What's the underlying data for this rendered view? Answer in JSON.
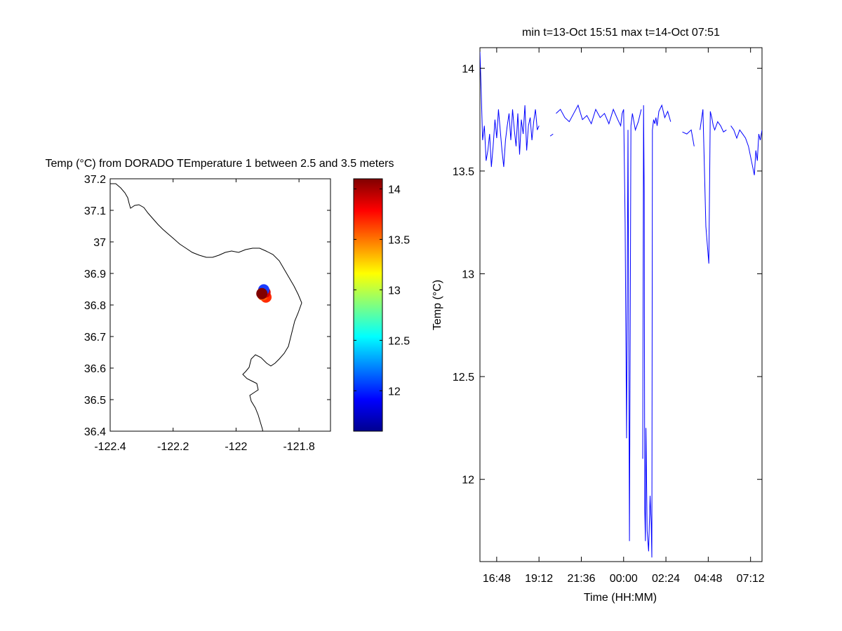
{
  "map_panel": {
    "title": "Temp (°C) from DORADO TEmperature 1 between 2.5 and 3.5 meters",
    "xlim": [
      -122.4,
      -121.7
    ],
    "ylim": [
      36.4,
      37.2
    ],
    "xticks": [
      "-122.4",
      "-122.2",
      "-122",
      "-121.8"
    ],
    "yticks": [
      "37.2",
      "37.1",
      "37",
      "36.9",
      "36.8",
      "36.7",
      "36.6",
      "36.5",
      "36.4"
    ],
    "track_markers": [
      {
        "lon": -121.905,
        "lat": 36.825,
        "color": "#ff2a00"
      },
      {
        "lon": -121.915,
        "lat": 36.832,
        "color": "#ff5a00"
      },
      {
        "lon": -121.908,
        "lat": 36.84,
        "color": "#d80000"
      },
      {
        "lon": -121.912,
        "lat": 36.848,
        "color": "#1a3cff"
      },
      {
        "lon": -121.918,
        "lat": 36.836,
        "color": "#800000"
      }
    ],
    "coastline_color": "#000000"
  },
  "colorbar": {
    "range": [
      11.6,
      14.1
    ],
    "ticks": [
      "14",
      "13.5",
      "13",
      "12.5",
      "12"
    ],
    "colormap": "jet"
  },
  "chart_data": {
    "type": "line",
    "title": "min t=13-Oct 15:51 max t=14-Oct 07:51",
    "xlabel": "Time (HH:MM)",
    "ylabel": "Temp (°C)",
    "xlim": [
      "13-Oct 15:51",
      "14-Oct 07:51"
    ],
    "ylim": [
      11.6,
      14.1
    ],
    "xticks": [
      "16:48",
      "19:12",
      "21:36",
      "00:00",
      "02:24",
      "04:48",
      "07:12"
    ],
    "yticks": [
      "14",
      "13.5",
      "13",
      "12.5",
      "12"
    ],
    "grid": false,
    "series": [
      {
        "color": "#0000ff",
        "x": [
          "13-Oct 15:51",
          "13-Oct 15:55",
          "13-Oct 16:00",
          "13-Oct 16:06",
          "13-Oct 16:12",
          "13-Oct 16:18",
          "13-Oct 16:24",
          "13-Oct 16:30",
          "13-Oct 16:36",
          "13-Oct 16:42",
          "13-Oct 16:48",
          "13-Oct 16:54",
          "13-Oct 17:00",
          "13-Oct 17:06",
          "13-Oct 17:12",
          "13-Oct 17:18",
          "13-Oct 17:24",
          "13-Oct 17:30",
          "13-Oct 17:36",
          "13-Oct 17:42",
          "13-Oct 17:48",
          "13-Oct 17:54",
          "13-Oct 18:00",
          "13-Oct 18:06",
          "13-Oct 18:12",
          "13-Oct 18:18",
          "13-Oct 18:24",
          "13-Oct 18:30",
          "13-Oct 18:36",
          "13-Oct 18:42",
          "13-Oct 18:48",
          "13-Oct 18:54",
          "13-Oct 19:00",
          "13-Oct 19:06",
          "13-Oct 19:12",
          null,
          "13-Oct 19:50",
          "13-Oct 20:00",
          null,
          "13-Oct 20:10",
          "13-Oct 20:25",
          "13-Oct 20:40",
          "13-Oct 20:55",
          "13-Oct 21:10",
          "13-Oct 21:25",
          "13-Oct 21:40",
          "13-Oct 21:55",
          "13-Oct 22:10",
          "13-Oct 22:25",
          "13-Oct 22:40",
          "13-Oct 22:55",
          "13-Oct 23:10",
          "13-Oct 23:25",
          "13-Oct 23:40",
          "13-Oct 23:50",
          "13-Oct 23:55",
          "14-Oct 00:00",
          "14-Oct 00:05",
          "14-Oct 00:10",
          "14-Oct 00:15",
          "14-Oct 00:20",
          "14-Oct 00:25",
          "14-Oct 00:30",
          "14-Oct 00:40",
          "14-Oct 00:50",
          "14-Oct 01:00",
          null,
          "14-Oct 01:05",
          "14-Oct 01:08",
          "14-Oct 01:10",
          "14-Oct 01:12",
          "14-Oct 01:14",
          "14-Oct 01:16",
          "14-Oct 01:20",
          "14-Oct 01:25",
          "14-Oct 01:30",
          "14-Oct 01:34",
          "14-Oct 01:36",
          "14-Oct 01:38",
          "14-Oct 01:42",
          "14-Oct 01:46",
          "14-Oct 01:50",
          "14-Oct 01:54",
          "14-Oct 02:00",
          "14-Oct 02:10",
          "14-Oct 02:20",
          "14-Oct 02:30",
          "14-Oct 02:40",
          null,
          "14-Oct 03:20",
          "14-Oct 03:35",
          "14-Oct 03:50",
          "14-Oct 04:00",
          null,
          "14-Oct 04:20",
          "14-Oct 04:30",
          "14-Oct 04:40",
          "14-Oct 04:50",
          "14-Oct 04:55",
          "14-Oct 05:00",
          "14-Oct 05:05",
          "14-Oct 05:10",
          "14-Oct 05:20",
          "14-Oct 05:30",
          "14-Oct 05:40",
          "14-Oct 05:50",
          null,
          "14-Oct 06:05",
          "14-Oct 06:15",
          "14-Oct 06:25",
          "14-Oct 06:35",
          "14-Oct 06:45",
          "14-Oct 06:55",
          "14-Oct 07:05",
          "14-Oct 07:15",
          "14-Oct 07:25",
          "14-Oct 07:30",
          "14-Oct 07:35",
          "14-Oct 07:40",
          "14-Oct 07:45",
          "14-Oct 07:51"
        ],
        "y": [
          14.08,
          13.9,
          13.65,
          13.72,
          13.55,
          13.6,
          13.68,
          13.52,
          13.62,
          13.75,
          13.66,
          13.8,
          13.7,
          13.6,
          13.52,
          13.65,
          13.72,
          13.78,
          13.65,
          13.8,
          13.7,
          13.62,
          13.78,
          13.58,
          13.75,
          13.68,
          13.82,
          13.6,
          13.72,
          13.76,
          13.65,
          13.74,
          13.8,
          13.7,
          13.72,
          null,
          13.67,
          13.68,
          null,
          13.78,
          13.8,
          13.76,
          13.74,
          13.78,
          13.82,
          13.75,
          13.77,
          13.73,
          13.8,
          13.76,
          13.78,
          13.73,
          13.8,
          13.75,
          13.72,
          13.78,
          13.8,
          13.25,
          12.2,
          13.7,
          11.7,
          13.72,
          13.78,
          13.7,
          13.74,
          13.8,
          null,
          12.1,
          13.82,
          13.4,
          11.85,
          11.7,
          12.25,
          11.75,
          11.65,
          11.92,
          11.78,
          11.62,
          13.7,
          13.75,
          13.73,
          13.76,
          13.72,
          13.79,
          13.82,
          13.76,
          13.79,
          13.74,
          null,
          13.69,
          13.68,
          13.7,
          13.62,
          null,
          13.7,
          13.8,
          13.23,
          13.05,
          13.79,
          13.76,
          13.72,
          13.7,
          13.74,
          13.72,
          13.69,
          13.7,
          null,
          13.72,
          13.7,
          13.66,
          13.7,
          13.68,
          13.66,
          13.62,
          13.55,
          13.48,
          13.6,
          13.55,
          13.68,
          13.65,
          13.7
        ]
      }
    ]
  }
}
